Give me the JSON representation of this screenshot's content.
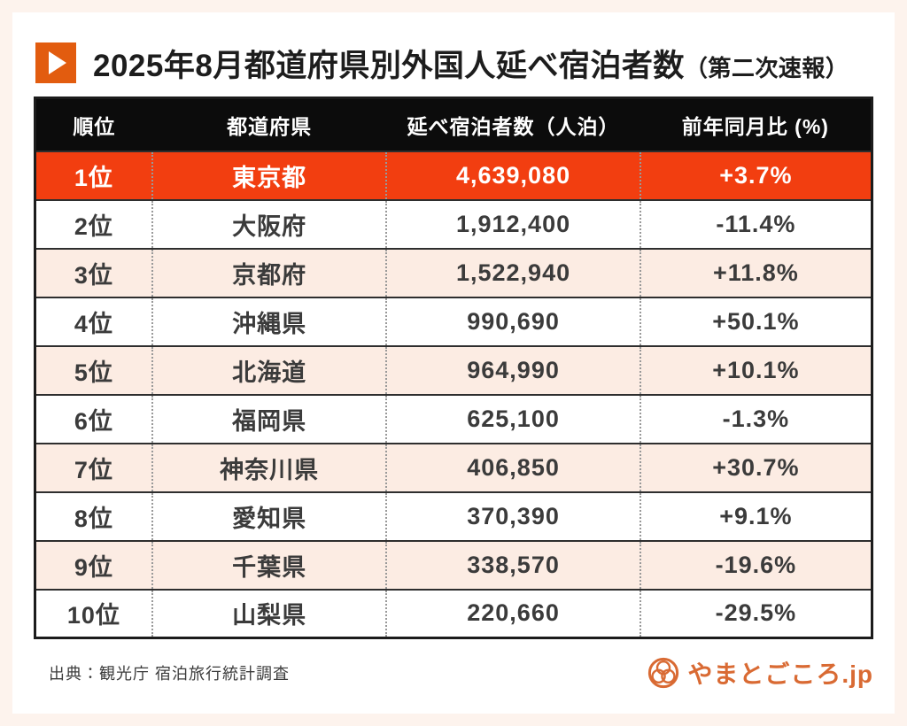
{
  "header": {
    "title_main": "2025年8月都道府県別外国人延べ宿泊者数",
    "title_note": "（第二次速報）"
  },
  "table": {
    "headers": [
      "順位",
      "都道府県",
      "延べ宿泊者数（人泊）",
      "前年同月比 (%)"
    ],
    "rows": [
      {
        "rank": "1位",
        "prefecture": "東京都",
        "value": "4,639,080",
        "yoy": "+3.7%",
        "highlight": true
      },
      {
        "rank": "2位",
        "prefecture": "大阪府",
        "value": "1,912,400",
        "yoy": "-11.4%",
        "highlight": false
      },
      {
        "rank": "3位",
        "prefecture": "京都府",
        "value": "1,522,940",
        "yoy": "+11.8%",
        "highlight": false
      },
      {
        "rank": "4位",
        "prefecture": "沖縄県",
        "value": "990,690",
        "yoy": "+50.1%",
        "highlight": false
      },
      {
        "rank": "5位",
        "prefecture": "北海道",
        "value": "964,990",
        "yoy": "+10.1%",
        "highlight": false
      },
      {
        "rank": "6位",
        "prefecture": "福岡県",
        "value": "625,100",
        "yoy": "-1.3%",
        "highlight": false
      },
      {
        "rank": "7位",
        "prefecture": "神奈川県",
        "value": "406,850",
        "yoy": "+30.7%",
        "highlight": false
      },
      {
        "rank": "8位",
        "prefecture": "愛知県",
        "value": "370,390",
        "yoy": "+9.1%",
        "highlight": false
      },
      {
        "rank": "9位",
        "prefecture": "千葉県",
        "value": "338,570",
        "yoy": "-19.6%",
        "highlight": false
      },
      {
        "rank": "10位",
        "prefecture": "山梨県",
        "value": "220,660",
        "yoy": "-29.5%",
        "highlight": false
      }
    ]
  },
  "footer": {
    "source": "出典：観光庁 宿泊旅行統計調査",
    "logo_text": "やまとごころ.jp"
  },
  "colors": {
    "accent_red_orange": "#f23e10",
    "icon_orange": "#e25c0f",
    "logo_orange": "#d96a33",
    "page_border_peach": "#fdf3ed",
    "row_peach": "#fcece3",
    "header_black": "#0c0c0c",
    "text_dark": "#3b3b3b"
  },
  "chart_data": {
    "type": "table",
    "title": "2025年8月都道府県別外国人延べ宿泊者数（第二次速報）",
    "columns": [
      "順位",
      "都道府県",
      "延べ宿泊者数（人泊）",
      "前年同月比 (%)"
    ],
    "categories": [
      "東京都",
      "大阪府",
      "京都府",
      "沖縄県",
      "北海道",
      "福岡県",
      "神奈川県",
      "愛知県",
      "千葉県",
      "山梨県"
    ],
    "series": [
      {
        "name": "延べ宿泊者数（人泊）",
        "values": [
          4639080,
          1912400,
          1522940,
          990690,
          964990,
          625100,
          406850,
          370390,
          338570,
          220660
        ]
      },
      {
        "name": "前年同月比 (%)",
        "values": [
          3.7,
          -11.4,
          11.8,
          50.1,
          10.1,
          -1.3,
          30.7,
          9.1,
          -19.6,
          -29.5
        ]
      }
    ],
    "source": "出典：観光庁 宿泊旅行統計調査"
  }
}
